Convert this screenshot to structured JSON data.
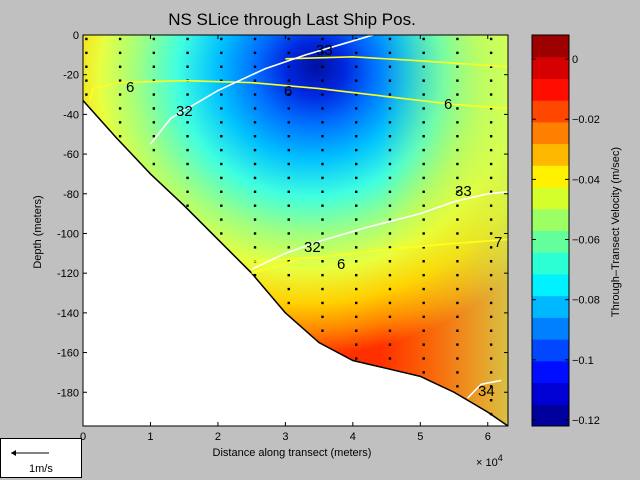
{
  "chart_data": {
    "type": "contour",
    "title": "NS SLice through Last Ship Pos.",
    "xlabel": "Distance along transect (meters)",
    "ylabel": "Depth (meters)",
    "x_exponent": "× 10",
    "x_exponent_power": "4",
    "xlim": [
      0,
      63000
    ],
    "ylim": [
      -197,
      0
    ],
    "x_ticks": [
      0,
      1,
      2,
      3,
      4,
      5,
      6
    ],
    "y_ticks": [
      0,
      -20,
      -40,
      -60,
      -80,
      -100,
      -120,
      -140,
      -160,
      -180
    ],
    "colorbar": {
      "label": "Through–Transect Velocity (m/sec)",
      "range": [
        -0.122,
        0.008
      ],
      "ticks": [
        "0",
        "−0.02",
        "−0.04",
        "−0.06",
        "−0.08",
        "−0.1",
        "−0.12"
      ],
      "tick_values": [
        0,
        -0.02,
        -0.04,
        -0.06,
        -0.08,
        -0.1,
        -0.12
      ]
    },
    "bottom_profile": [
      [
        0,
        -33
      ],
      [
        5000,
        -52
      ],
      [
        10000,
        -70
      ],
      [
        15000,
        -86
      ],
      [
        20000,
        -103
      ],
      [
        25000,
        -120
      ],
      [
        30000,
        -140
      ],
      [
        35000,
        -155
      ],
      [
        40000,
        -164
      ],
      [
        45000,
        -168
      ],
      [
        50000,
        -172
      ],
      [
        55000,
        -180
      ],
      [
        60000,
        -190
      ],
      [
        63000,
        -197
      ]
    ],
    "isohaline_labels": [
      "32",
      "32",
      "33",
      "33",
      "34"
    ],
    "isotherm_labels": [
      "6",
      "6",
      "6",
      "6",
      "7"
    ],
    "scale_arrow_label": "1m/s"
  }
}
